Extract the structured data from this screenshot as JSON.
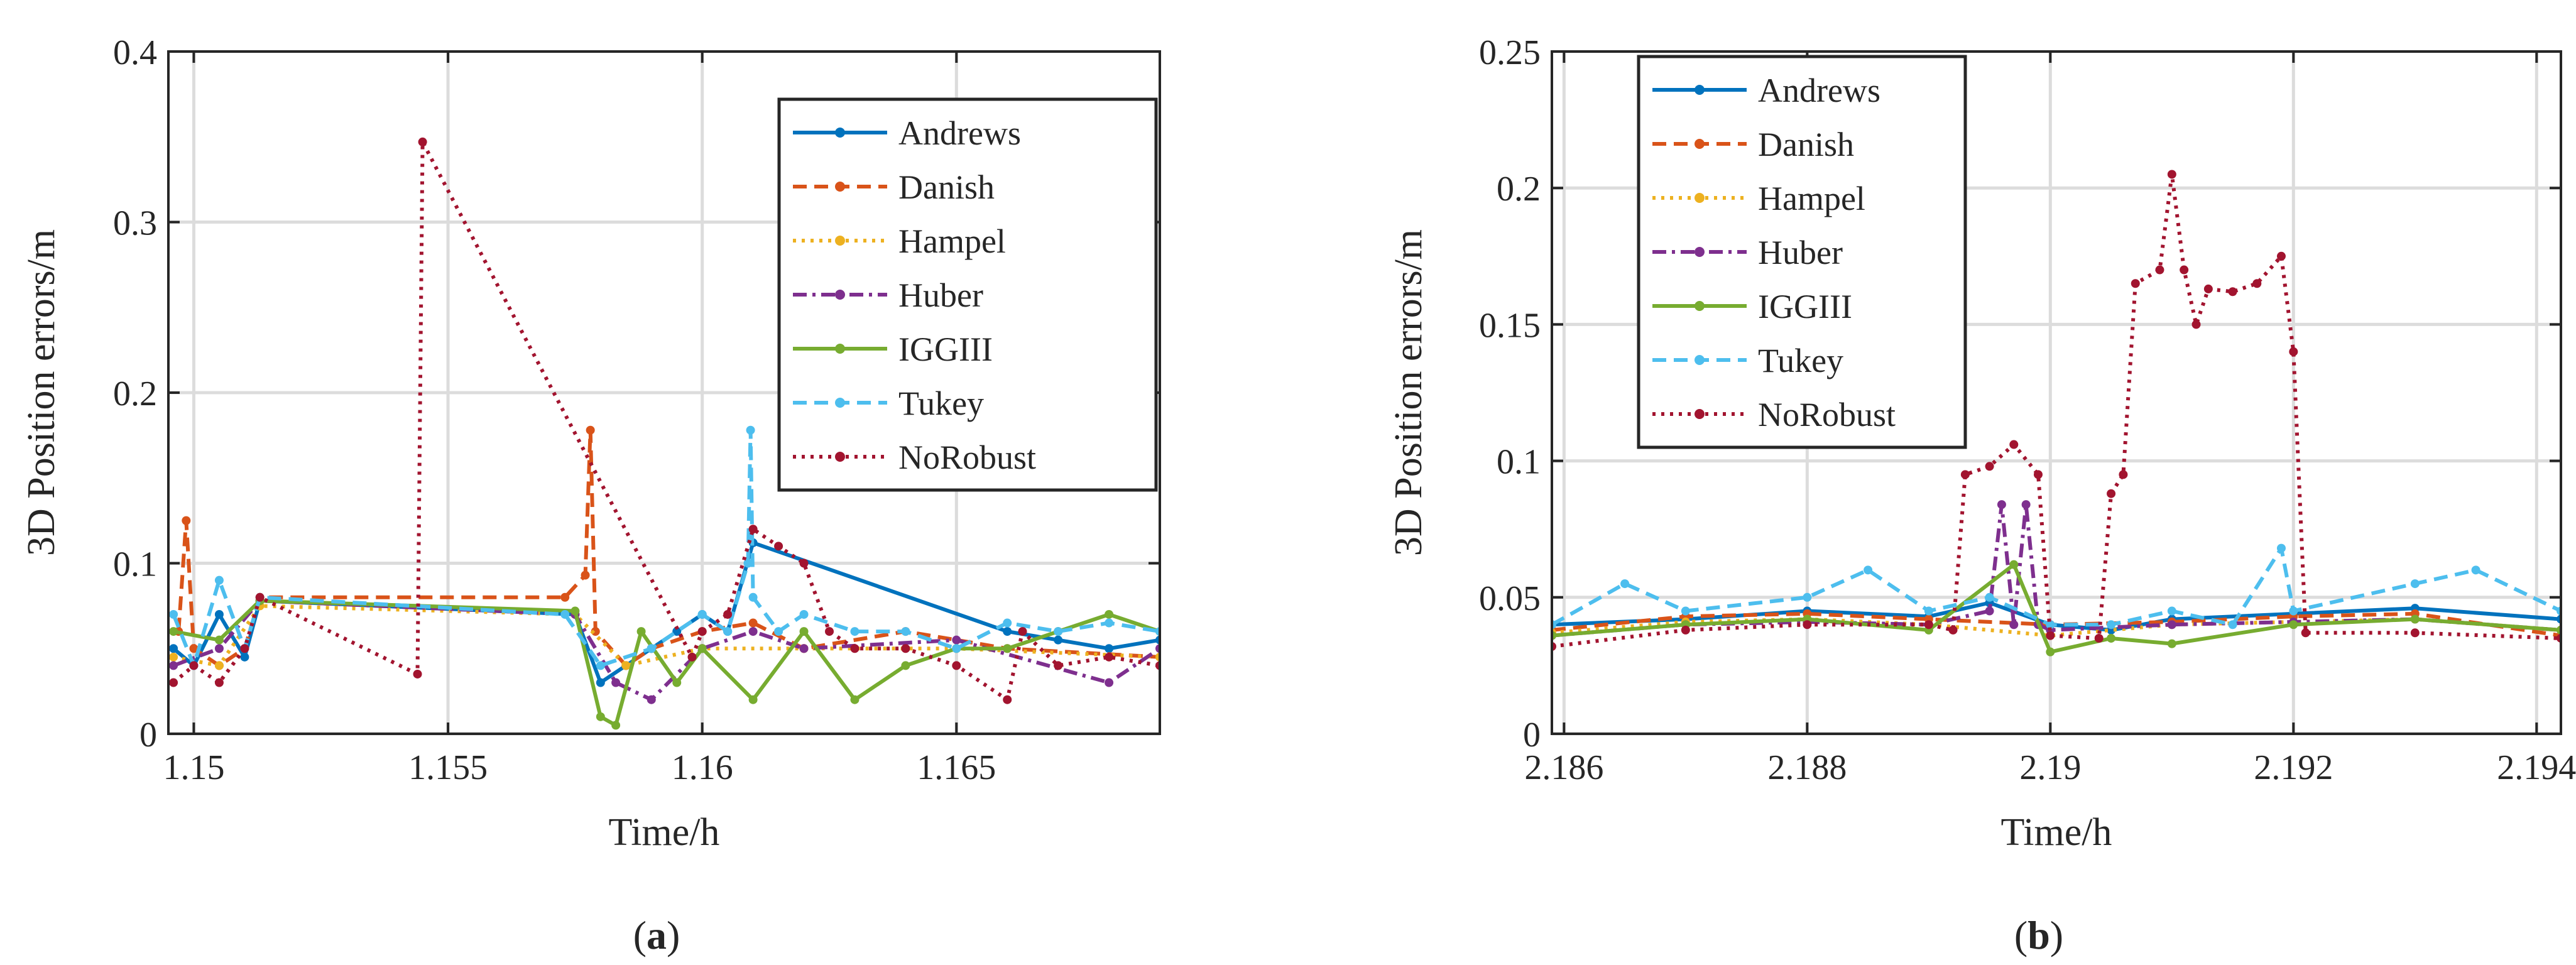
{
  "chart_data": [
    {
      "type": "line",
      "panel_label": "a",
      "xlabel": "Time/h",
      "ylabel": "3D Position errors/m",
      "xlim": [
        1.1495,
        1.169
      ],
      "ylim": [
        0,
        0.4
      ],
      "xticks": [
        1.15,
        1.155,
        1.16,
        1.165
      ],
      "xtick_labels": [
        "1.15",
        "1.155",
        "1.16",
        "1.165"
      ],
      "yticks": [
        0,
        0.1,
        0.2,
        0.3,
        0.4
      ],
      "ytick_labels": [
        "0",
        "0.1",
        "0.2",
        "0.3",
        "0.4"
      ],
      "grid": true,
      "legend_position": "top-right",
      "series": [
        {
          "name": "Andrews",
          "color": "#0072BD",
          "dash": "solid",
          "x": [
            1.1496,
            1.15,
            1.1505,
            1.151,
            1.1513,
            1.1575,
            1.158,
            1.1585,
            1.159,
            1.1595,
            1.16,
            1.1605,
            1.161,
            1.166,
            1.167,
            1.168,
            1.169
          ],
          "y": [
            0.05,
            0.04,
            0.07,
            0.045,
            0.078,
            0.07,
            0.03,
            0.04,
            0.05,
            0.06,
            0.07,
            0.06,
            0.112,
            0.06,
            0.055,
            0.05,
            0.055
          ]
        },
        {
          "name": "Danish",
          "color": "#D95319",
          "dash": "dashed",
          "x": [
            1.1497,
            1.14985,
            1.15,
            1.1505,
            1.151,
            1.1513,
            1.1573,
            1.1577,
            1.1578,
            1.1579,
            1.1585,
            1.159,
            1.16,
            1.161,
            1.162,
            1.164,
            1.166,
            1.169
          ],
          "y": [
            0.06,
            0.125,
            0.05,
            0.04,
            0.05,
            0.08,
            0.08,
            0.093,
            0.178,
            0.06,
            0.04,
            0.05,
            0.06,
            0.065,
            0.05,
            0.06,
            0.05,
            0.045
          ]
        },
        {
          "name": "Hampel",
          "color": "#EDB120",
          "dash": "dotted",
          "x": [
            1.1496,
            1.1505,
            1.1513,
            1.1575,
            1.1585,
            1.16,
            1.162,
            1.165,
            1.169
          ],
          "y": [
            0.045,
            0.04,
            0.075,
            0.07,
            0.04,
            0.05,
            0.05,
            0.05,
            0.045
          ]
        },
        {
          "name": "Huber",
          "color": "#7E2F8E",
          "dash": "dashdot",
          "x": [
            1.1496,
            1.1505,
            1.1513,
            1.1575,
            1.1583,
            1.159,
            1.16,
            1.161,
            1.162,
            1.165,
            1.168,
            1.169
          ],
          "y": [
            0.04,
            0.05,
            0.078,
            0.07,
            0.03,
            0.02,
            0.05,
            0.06,
            0.05,
            0.055,
            0.03,
            0.05
          ]
        },
        {
          "name": "IGGIII",
          "color": "#77AC30",
          "dash": "solid",
          "x": [
            1.1496,
            1.1505,
            1.1513,
            1.1575,
            1.158,
            1.1583,
            1.1588,
            1.1595,
            1.16,
            1.161,
            1.162,
            1.163,
            1.164,
            1.165,
            1.166,
            1.167,
            1.168,
            1.169
          ],
          "y": [
            0.06,
            0.055,
            0.078,
            0.072,
            0.01,
            0.005,
            0.06,
            0.03,
            0.05,
            0.02,
            0.06,
            0.02,
            0.04,
            0.05,
            0.05,
            0.06,
            0.07,
            0.06
          ]
        },
        {
          "name": "Tukey",
          "color": "#4DBEEE",
          "dash": "dashed",
          "x": [
            1.1496,
            1.15,
            1.1505,
            1.151,
            1.1513,
            1.1573,
            1.158,
            1.159,
            1.16,
            1.1605,
            1.1609,
            1.16095,
            1.161,
            1.1615,
            1.162,
            1.163,
            1.164,
            1.165,
            1.166,
            1.167,
            1.168,
            1.169
          ],
          "y": [
            0.07,
            0.04,
            0.09,
            0.05,
            0.08,
            0.07,
            0.04,
            0.05,
            0.07,
            0.06,
            0.1,
            0.178,
            0.08,
            0.06,
            0.07,
            0.06,
            0.06,
            0.05,
            0.065,
            0.06,
            0.065,
            0.06
          ]
        },
        {
          "name": "NoRobust",
          "color": "#A2142F",
          "dash": "dotted",
          "x": [
            1.1496,
            1.15,
            1.1505,
            1.151,
            1.1513,
            1.1544,
            1.1545,
            1.1598,
            1.16,
            1.1605,
            1.161,
            1.1615,
            1.162,
            1.1625,
            1.163,
            1.164,
            1.165,
            1.166,
            1.1663,
            1.167,
            1.168,
            1.169
          ],
          "y": [
            0.03,
            0.04,
            0.03,
            0.05,
            0.08,
            0.035,
            0.347,
            0.045,
            0.06,
            0.07,
            0.12,
            0.11,
            0.1,
            0.06,
            0.05,
            0.05,
            0.04,
            0.02,
            0.06,
            0.04,
            0.045,
            0.04
          ]
        }
      ]
    },
    {
      "type": "line",
      "panel_label": "b",
      "xlabel": "Time/h",
      "ylabel": "3D Position errors/m",
      "xlim": [
        2.1859,
        2.1942
      ],
      "ylim": [
        0,
        0.25
      ],
      "xticks": [
        2.186,
        2.188,
        2.19,
        2.192,
        2.194
      ],
      "xtick_labels": [
        "2.186",
        "2.188",
        "2.19",
        "2.192",
        "2.194"
      ],
      "yticks": [
        0,
        0.05,
        0.1,
        0.15,
        0.2,
        0.25
      ],
      "ytick_labels": [
        "0",
        "0.05",
        "0.1",
        "0.15",
        "0.2",
        "0.25"
      ],
      "grid": true,
      "legend_position": "top-left",
      "series": [
        {
          "name": "Andrews",
          "color": "#0072BD",
          "dash": "solid",
          "x": [
            2.1859,
            2.187,
            2.188,
            2.189,
            2.1895,
            2.19,
            2.1905,
            2.191,
            2.192,
            2.193,
            2.1942
          ],
          "y": [
            0.04,
            0.042,
            0.045,
            0.043,
            0.048,
            0.04,
            0.038,
            0.042,
            0.044,
            0.046,
            0.042
          ]
        },
        {
          "name": "Danish",
          "color": "#D95319",
          "dash": "dashed",
          "x": [
            2.1859,
            2.187,
            2.188,
            2.189,
            2.19,
            2.191,
            2.192,
            2.193,
            2.1942
          ],
          "y": [
            0.038,
            0.043,
            0.044,
            0.042,
            0.04,
            0.041,
            0.043,
            0.044,
            0.036
          ]
        },
        {
          "name": "Hampel",
          "color": "#EDB120",
          "dash": "dotted",
          "x": [
            2.1859,
            2.187,
            2.188,
            2.189,
            2.19,
            2.191,
            2.192,
            2.193,
            2.1942
          ],
          "y": [
            0.037,
            0.041,
            0.042,
            0.04,
            0.036,
            0.04,
            0.041,
            0.042,
            0.038
          ]
        },
        {
          "name": "Huber",
          "color": "#7E2F8E",
          "dash": "dashdot",
          "x": [
            2.1859,
            2.187,
            2.188,
            2.189,
            2.1895,
            2.1896,
            2.1897,
            2.1898,
            2.1899,
            2.19,
            2.191,
            2.192,
            2.193,
            2.1942
          ],
          "y": [
            0.036,
            0.04,
            0.041,
            0.04,
            0.045,
            0.084,
            0.04,
            0.084,
            0.04,
            0.038,
            0.04,
            0.041,
            0.042,
            0.038
          ]
        },
        {
          "name": "IGGIII",
          "color": "#77AC30",
          "dash": "solid",
          "x": [
            2.1859,
            2.187,
            2.188,
            2.189,
            2.1897,
            2.19,
            2.1905,
            2.191,
            2.192,
            2.193,
            2.1942
          ],
          "y": [
            0.036,
            0.04,
            0.042,
            0.038,
            0.062,
            0.03,
            0.035,
            0.033,
            0.04,
            0.042,
            0.038
          ]
        },
        {
          "name": "Tukey",
          "color": "#4DBEEE",
          "dash": "dashed",
          "x": [
            2.1859,
            2.1865,
            2.187,
            2.188,
            2.1885,
            2.189,
            2.1895,
            2.19,
            2.1905,
            2.191,
            2.1915,
            2.1919,
            2.192,
            2.193,
            2.1935,
            2.1942
          ],
          "y": [
            0.04,
            0.055,
            0.045,
            0.05,
            0.06,
            0.045,
            0.05,
            0.04,
            0.04,
            0.045,
            0.04,
            0.068,
            0.045,
            0.055,
            0.06,
            0.045
          ]
        },
        {
          "name": "NoRobust",
          "color": "#A2142F",
          "dash": "dotted",
          "x": [
            2.1859,
            2.187,
            2.188,
            2.189,
            2.1892,
            2.1893,
            2.1895,
            2.1897,
            2.1899,
            2.19,
            2.1904,
            2.1905,
            2.1906,
            2.1907,
            2.1909,
            2.191,
            2.1911,
            2.1912,
            2.1913,
            2.1915,
            2.1917,
            2.1919,
            2.192,
            2.1921,
            2.193,
            2.1942
          ],
          "y": [
            0.032,
            0.038,
            0.04,
            0.04,
            0.038,
            0.095,
            0.098,
            0.106,
            0.095,
            0.036,
            0.035,
            0.088,
            0.095,
            0.165,
            0.17,
            0.205,
            0.17,
            0.15,
            0.163,
            0.162,
            0.165,
            0.175,
            0.14,
            0.037,
            0.037,
            0.035
          ]
        }
      ]
    }
  ]
}
